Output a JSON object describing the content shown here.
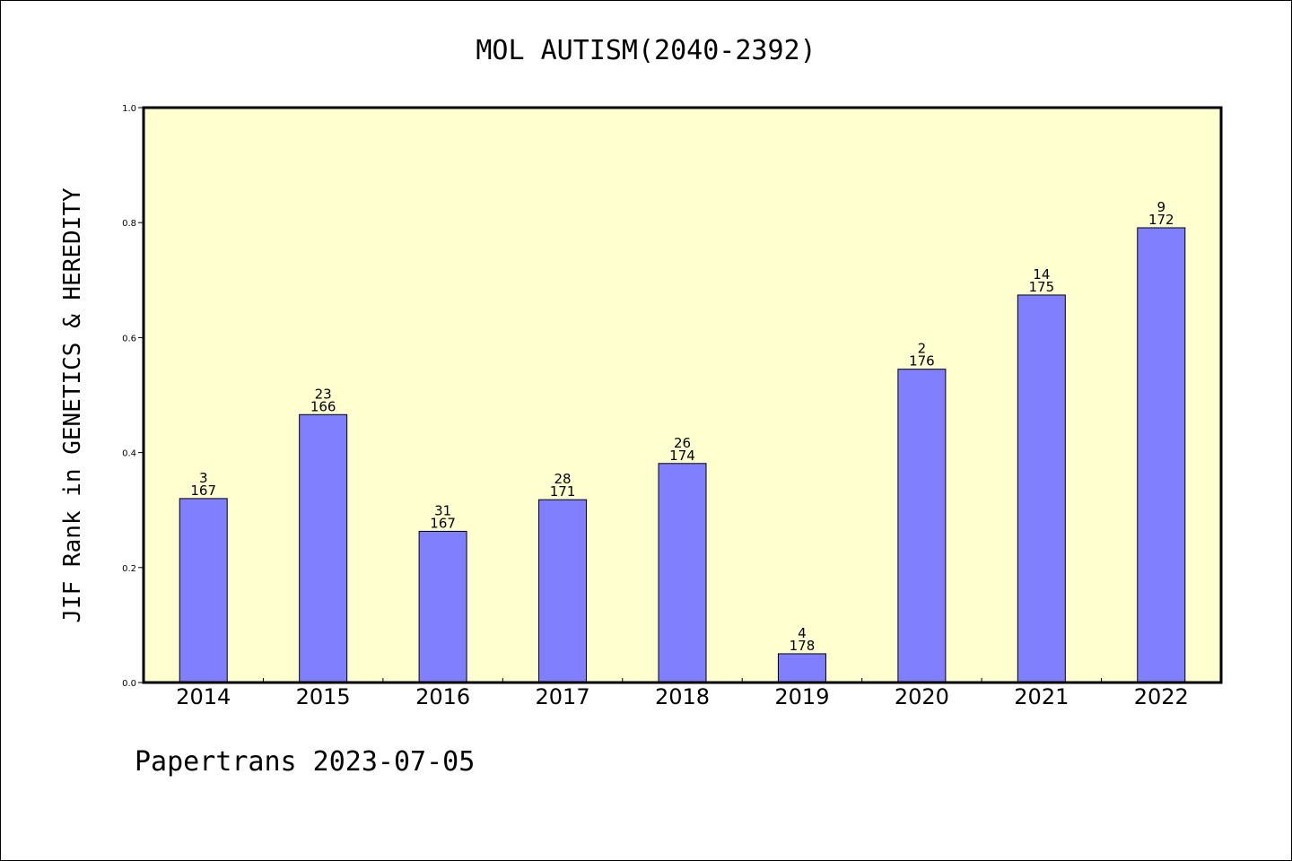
{
  "footer": "Papertrans 2023-07-05",
  "chart_data": {
    "type": "bar",
    "title": "MOL AUTISM(2040-2392)",
    "xlabel": "",
    "ylabel": "JIF Rank in GENETICS & HEREDITY",
    "ylim": [
      0,
      1.0
    ],
    "yticks": [
      "0.0",
      "0.2",
      "0.4",
      "0.6",
      "0.8",
      "1.0"
    ],
    "grid": false,
    "categories": [
      "2014",
      "2015",
      "2016",
      "2017",
      "2018",
      "2019",
      "2020",
      "2021",
      "2022"
    ],
    "values": [
      0.32,
      0.466,
      0.263,
      0.318,
      0.381,
      0.05,
      0.545,
      0.674,
      0.791
    ],
    "ranks": [
      "3",
      "23",
      "31",
      "28",
      "26",
      "4",
      "2",
      "14",
      "9"
    ],
    "totals": [
      "167",
      "166",
      "167",
      "171",
      "174",
      "178",
      "176",
      "175",
      "172"
    ],
    "colors": {
      "plot_background": "#ffffd0",
      "bar_fill": "#8080ff",
      "bar_stroke": "#000000"
    }
  }
}
